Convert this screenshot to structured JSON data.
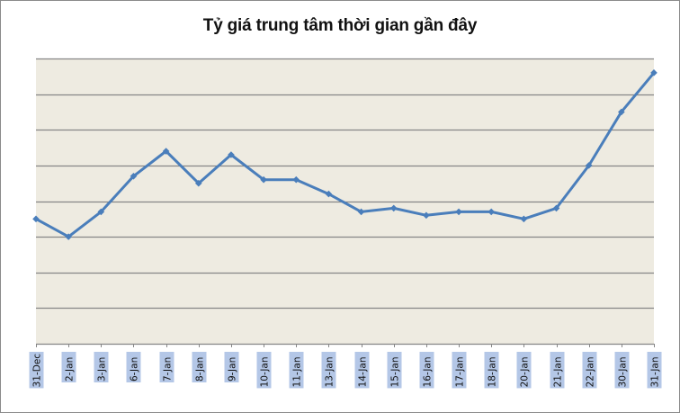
{
  "chart_data": {
    "type": "line",
    "title": "Tỷ giá trung tâm thời gian gần đây",
    "xlabel": "",
    "ylabel": "",
    "y_tick_labels_visible": false,
    "grid": true,
    "legend": null,
    "y_units": "gridline units (no axis labels shown; 0 = bottom axis, 8 = top gridline)",
    "ylim": [
      0,
      8
    ],
    "categories": [
      "31-Dec",
      "2-Jan",
      "3-Jan",
      "6-Jan",
      "7-Jan",
      "8-Jan",
      "9-Jan",
      "10-Jan",
      "11-Jan",
      "13-Jan",
      "14-Jan",
      "15-Jan",
      "16-Jan",
      "17-Jan",
      "18-Jan",
      "20-Jan",
      "21-Jan",
      "22-Jan",
      "30-Jan",
      "31-Jan"
    ],
    "series": [
      {
        "name": "Tỷ giá trung tâm",
        "color": "#4a7ebb",
        "values": [
          3.5,
          3.0,
          3.7,
          4.7,
          5.4,
          4.5,
          5.3,
          4.6,
          4.6,
          4.2,
          3.7,
          3.8,
          3.6,
          3.7,
          3.7,
          3.5,
          3.8,
          5.0,
          6.5,
          7.6
        ]
      }
    ]
  },
  "colors": {
    "plot_background": "#eeebe1",
    "gridline": "#868686",
    "line": "#4a7ebb",
    "label_highlight": "#b4c7e7"
  }
}
